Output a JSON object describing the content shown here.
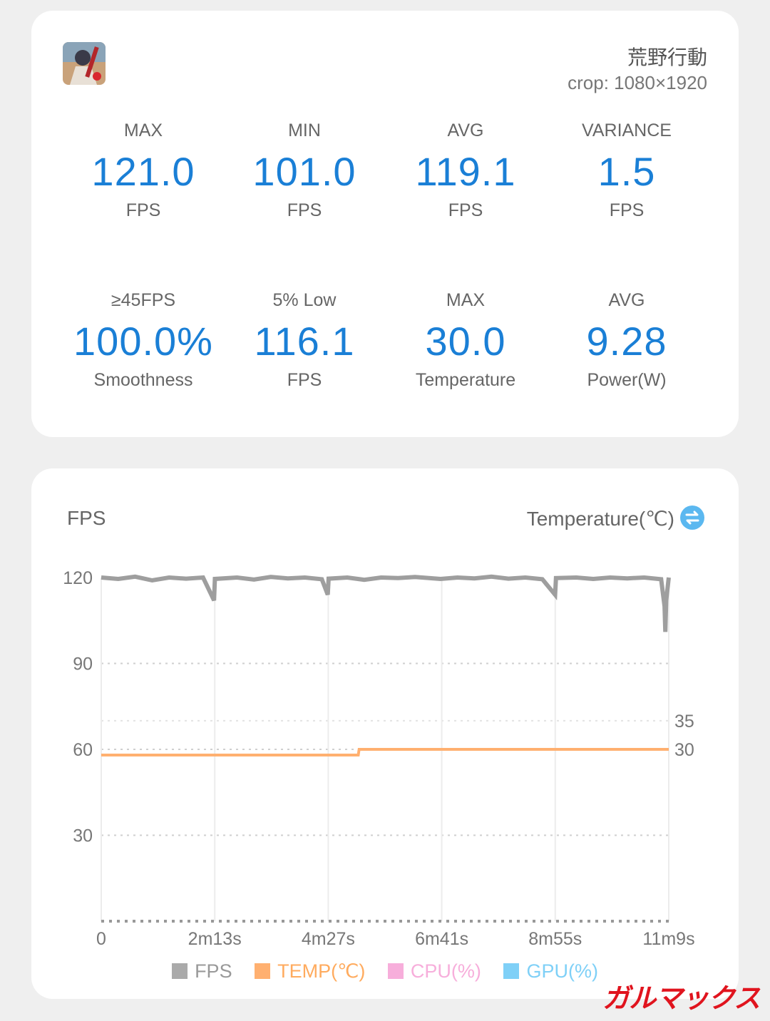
{
  "header": {
    "game_title": "荒野行動",
    "crop_text": "crop: 1080×1920"
  },
  "stats_row1": [
    {
      "label": "MAX",
      "value": "121.0",
      "unit": "FPS"
    },
    {
      "label": "MIN",
      "value": "101.0",
      "unit": "FPS"
    },
    {
      "label": "AVG",
      "value": "119.1",
      "unit": "FPS"
    },
    {
      "label": "VARIANCE",
      "value": "1.5",
      "unit": "FPS"
    }
  ],
  "stats_row2": [
    {
      "label": "≥45FPS",
      "value": "100.0%",
      "unit": "Smoothness"
    },
    {
      "label": "5% Low",
      "value": "116.1",
      "unit": "FPS"
    },
    {
      "label": "MAX",
      "value": "30.0",
      "unit": "Temperature"
    },
    {
      "label": "AVG",
      "value": "9.28",
      "unit": "Power(W)"
    }
  ],
  "chart_header": {
    "left_title": "FPS",
    "right_title": "Temperature(℃)",
    "swap_icon": "swap-icon"
  },
  "chart_data": {
    "type": "line",
    "x_ticks": [
      "0",
      "2m13s",
      "4m27s",
      "6m41s",
      "8m55s",
      "11m9s"
    ],
    "x_range_seconds": [
      0,
      669
    ],
    "y_left_ticks": [
      "120",
      "90",
      "60",
      "30"
    ],
    "y_left_range": [
      0,
      120
    ],
    "y_right_ticks": [
      "35",
      "30"
    ],
    "y_right_range": [
      0,
      60
    ],
    "grid": true,
    "series": [
      {
        "name": "FPS",
        "color": "#9e9e9e",
        "axis": "left",
        "points": [
          [
            0,
            120
          ],
          [
            20,
            119.5
          ],
          [
            40,
            120.3
          ],
          [
            60,
            119
          ],
          [
            80,
            120
          ],
          [
            100,
            119.6
          ],
          [
            120,
            120
          ],
          [
            133,
            112
          ],
          [
            134,
            119.5
          ],
          [
            160,
            120
          ],
          [
            180,
            119.3
          ],
          [
            200,
            120.2
          ],
          [
            220,
            119.7
          ],
          [
            240,
            120
          ],
          [
            260,
            119.4
          ],
          [
            267,
            114
          ],
          [
            268,
            119.6
          ],
          [
            290,
            120
          ],
          [
            310,
            119.2
          ],
          [
            330,
            120
          ],
          [
            350,
            119.8
          ],
          [
            370,
            120.2
          ],
          [
            400,
            119.5
          ],
          [
            420,
            120
          ],
          [
            440,
            119.7
          ],
          [
            460,
            120.3
          ],
          [
            480,
            119.6
          ],
          [
            500,
            120
          ],
          [
            520,
            119.4
          ],
          [
            535,
            114
          ],
          [
            536,
            119.8
          ],
          [
            560,
            120
          ],
          [
            580,
            119.5
          ],
          [
            600,
            120
          ],
          [
            620,
            119.7
          ],
          [
            640,
            120
          ],
          [
            660,
            119.4
          ],
          [
            664,
            110
          ],
          [
            665,
            101
          ],
          [
            666,
            112
          ],
          [
            669,
            120
          ]
        ]
      },
      {
        "name": "TEMP(℃)",
        "color": "#ffb070",
        "axis": "right",
        "points": [
          [
            0,
            29
          ],
          [
            303,
            29
          ],
          [
            304,
            30
          ],
          [
            669,
            30
          ]
        ]
      },
      {
        "name": "CPU(%)",
        "color": "#f7aedb",
        "axis": "left",
        "points": []
      },
      {
        "name": "GPU(%)",
        "color": "#7fd0f7",
        "axis": "left",
        "points": []
      }
    ]
  },
  "legend": [
    {
      "name": "FPS",
      "color": "#aaaaaa",
      "text_color": "#999999"
    },
    {
      "name": "TEMP(℃)",
      "color": "#ffb070",
      "text_color": "#ffab5e"
    },
    {
      "name": "CPU(%)",
      "color": "#f7aedb",
      "text_color": "#f7aedb"
    },
    {
      "name": "GPU(%)",
      "color": "#7fd0f7",
      "text_color": "#7fd0f7"
    }
  ],
  "watermark": "ガルマックス"
}
